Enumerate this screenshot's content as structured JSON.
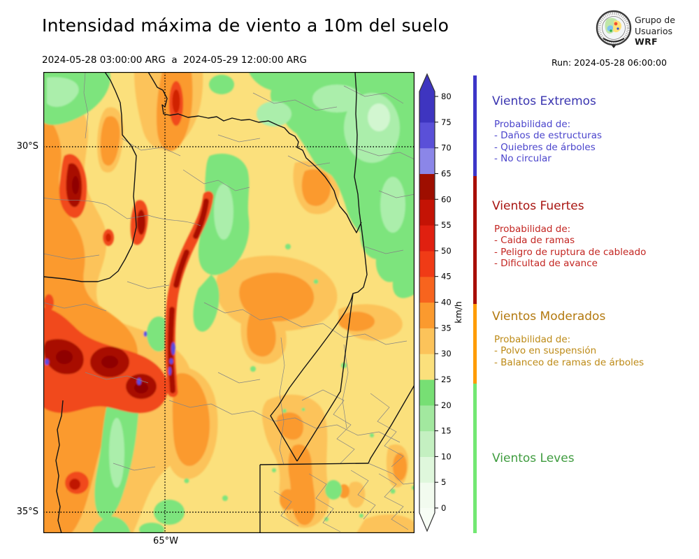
{
  "header": {
    "title": "Intensidad máxima de viento a 10m del suelo",
    "subtitle": "2024-05-28 03:00:00 ARG  a  2024-05-29 12:00:00 ARG",
    "run": "Run: 2024-05-28 06:00:00",
    "logo": {
      "line1": "Grupo de",
      "line2": "Usuarios",
      "line3": "WRF"
    }
  },
  "map": {
    "lat_labels": [
      "30°S",
      "35°S"
    ],
    "lon_label": "65°W"
  },
  "colorbar": {
    "unit": "km/h",
    "ticks": [
      "0",
      "5",
      "10",
      "15",
      "20",
      "25",
      "30",
      "35",
      "40",
      "45",
      "50",
      "55",
      "60",
      "65",
      "70",
      "75",
      "80"
    ],
    "band_colors_low_to_high": [
      "#f2fbef",
      "#dff7dc",
      "#c4f0c1",
      "#a2e89f",
      "#77df74",
      "#fbe07c",
      "#fcc35a",
      "#fb9a2e",
      "#f7641e",
      "#f03b16",
      "#e02010",
      "#c41305",
      "#9e0e00",
      "#8b86e8",
      "#5a50d8",
      "#3e35c0"
    ],
    "over_color": "#3e35c0",
    "under_color": "#f7fdf5"
  },
  "categories": [
    {
      "name": "Vientos Extremos",
      "title_color": "#3a35b0",
      "body_color": "#4a44cc",
      "bar_color": "#3d35c8",
      "items": [
        "Probabilidad de:",
        "- Daños de estructuras",
        "- Quiebres de árboles",
        "- No circular"
      ]
    },
    {
      "name": "Vientos Fuertes",
      "title_color": "#a81410",
      "body_color": "#c32521",
      "bar_color": "#a80d04",
      "items": [
        "Probabilidad de:",
        "- Caida de ramas",
        "- Peligro de ruptura de cableado",
        "- Dificultad de avance"
      ]
    },
    {
      "name": "Vientos Moderados",
      "title_color": "#b3790f",
      "body_color": "#bd8a16",
      "bar_color": "#ff9c00",
      "items": [
        "Probabilidad de:",
        "- Polvo en suspensión",
        "- Balanceo de ramas de árboles"
      ]
    },
    {
      "name": "Vientos Leves",
      "title_color": "#3f9c3f",
      "body_color": "#3f9c3f",
      "bar_color": "#72e872",
      "items": []
    }
  ]
}
